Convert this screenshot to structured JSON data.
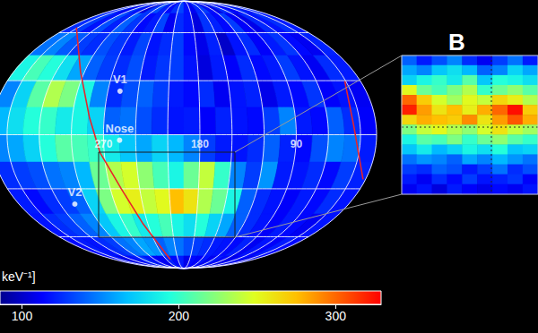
{
  "chart_data": {
    "type": "heatmap",
    "grid": true,
    "map": {
      "lon": [
        7.5,
        352.5,
        337.5,
        322.5,
        307.5,
        292.5,
        277.5,
        262.5,
        247.5,
        232.5,
        217.5,
        202.5,
        187.5,
        172.5,
        157.5,
        142.5,
        127.5,
        112.5,
        97.5,
        82.5,
        67.5,
        52.5,
        37.5,
        22.5
      ],
      "lat": [
        82.5,
        67.5,
        52.5,
        37.5,
        22.5,
        7.5,
        -7.5,
        -22.5,
        -37.5,
        -52.5,
        -67.5,
        -82.5
      ],
      "values": [
        [
          120,
          125,
          110,
          130,
          118,
          105,
          128,
          135,
          122,
          115,
          126,
          132,
          118,
          110,
          124,
          130,
          117,
          108,
          125,
          120,
          113,
          128,
          119,
          123
        ],
        [
          125,
          130,
          118,
          135,
          122,
          140,
          128,
          115,
          120,
          132,
          110,
          125,
          118,
          105,
          127,
          122,
          115,
          130,
          112,
          108,
          124,
          118,
          126,
          120
        ],
        [
          145,
          150,
          138,
          130,
          125,
          135,
          128,
          120,
          132,
          118,
          125,
          130,
          115,
          108,
          122,
          100,
          118,
          125,
          112,
          120,
          128,
          115,
          110,
          122
        ],
        [
          190,
          205,
          195,
          180,
          160,
          140,
          130,
          125,
          135,
          120,
          128,
          130,
          118,
          105,
          120,
          112,
          125,
          115,
          120,
          130,
          118,
          110,
          125,
          120
        ],
        [
          150,
          175,
          210,
          235,
          220,
          190,
          150,
          125,
          135,
          140,
          130,
          120,
          115,
          125,
          110,
          118,
          122,
          108,
          120,
          115,
          128,
          112,
          118,
          110
        ],
        [
          165,
          180,
          195,
          200,
          185,
          190,
          175,
          140,
          145,
          135,
          125,
          118,
          120,
          112,
          122,
          118,
          115,
          130,
          150,
          120,
          115,
          140,
          125,
          112
        ],
        [
          150,
          160,
          175,
          195,
          210,
          205,
          200,
          185,
          170,
          160,
          175,
          165,
          150,
          130,
          120,
          118,
          125,
          140,
          122,
          115,
          135,
          150,
          145,
          120
        ],
        [
          125,
          130,
          135,
          145,
          150,
          165,
          215,
          235,
          245,
          225,
          205,
          190,
          215,
          240,
          200,
          150,
          130,
          155,
          120,
          118,
          125,
          115,
          130,
          122
        ],
        [
          120,
          115,
          125,
          130,
          140,
          175,
          220,
          245,
          255,
          240,
          250,
          275,
          260,
          235,
          215,
          190,
          140,
          125,
          118,
          112,
          120,
          115,
          125,
          118
        ],
        [
          118,
          125,
          130,
          140,
          150,
          170,
          190,
          200,
          185,
          195,
          205,
          190,
          180,
          195,
          175,
          160,
          140,
          125,
          118,
          112,
          120,
          115,
          110,
          118
        ],
        [
          115,
          120,
          118,
          125,
          130,
          145,
          150,
          160,
          155,
          140,
          150,
          145,
          135,
          130,
          125,
          120,
          118,
          115,
          122,
          110,
          118,
          112,
          120,
          115
        ],
        [
          112,
          118,
          108,
          115,
          120,
          125,
          118,
          112,
          110,
          122,
          115,
          120,
          108,
          115,
          112,
          118,
          110,
          120,
          115,
          108,
          112,
          118,
          110,
          115
        ]
      ]
    },
    "lon_ticks": [
      0,
      30,
      60,
      90,
      120,
      150,
      180,
      210,
      240,
      270,
      300,
      330
    ],
    "lat_ticks": [
      -60,
      -30,
      0,
      30,
      60
    ],
    "lon_labels": [
      270,
      180,
      90
    ],
    "points": [
      {
        "label": "V1",
        "lon": 258,
        "lat": 24
      },
      {
        "label": "Nose",
        "lon": 255,
        "lat": -3
      },
      {
        "label": "V2",
        "lon": 314,
        "lat": -39
      }
    ],
    "lines": [
      {
        "color": "#e8242a",
        "lon": [
          2,
          304,
          284,
          274,
          259,
          246,
          230
        ],
        "lat": [
          63.6,
          34.9,
          9.7,
          -9.7,
          -29.7,
          -51.3,
          -78.2
        ]
      },
      {
        "color": "#e8242a",
        "lon": [
          31,
          36,
          17.5
        ],
        "lat": [
          29.7,
          4.9,
          -24.6
        ]
      }
    ],
    "inset": {
      "label": "B",
      "values": [
        [
          140,
          120,
          135,
          150,
          125,
          110,
          130,
          145,
          120
        ],
        [
          160,
          150,
          170,
          180,
          165,
          140,
          150,
          175,
          160
        ],
        [
          175,
          190,
          200,
          185,
          210,
          170,
          195,
          190,
          180
        ],
        [
          250,
          215,
          205,
          220,
          235,
          200,
          215,
          225,
          210
        ],
        [
          300,
          270,
          245,
          230,
          250,
          240,
          265,
          255,
          235
        ],
        [
          320,
          285,
          260,
          275,
          255,
          280,
          300,
          325,
          270
        ],
        [
          265,
          280,
          275,
          270,
          290,
          260,
          285,
          305,
          280
        ],
        [
          220,
          240,
          250,
          235,
          225,
          245,
          260,
          240,
          230
        ],
        [
          190,
          210,
          205,
          220,
          200,
          215,
          225,
          210,
          200
        ],
        [
          170,
          185,
          165,
          175,
          190,
          180,
          195,
          170,
          175
        ],
        [
          145,
          155,
          150,
          140,
          160,
          150,
          165,
          155,
          145
        ],
        [
          130,
          125,
          140,
          135,
          120,
          130,
          145,
          125,
          135
        ],
        [
          120,
          110,
          125,
          115,
          130,
          118,
          122,
          128,
          112
        ],
        [
          110,
          118,
          105,
          120,
          112,
          108,
          115,
          110,
          118
        ]
      ]
    },
    "colorbar": {
      "label": "keV⁻¹]",
      "range": [
        86,
        329
      ],
      "ticks": [
        100,
        200,
        300
      ]
    }
  }
}
